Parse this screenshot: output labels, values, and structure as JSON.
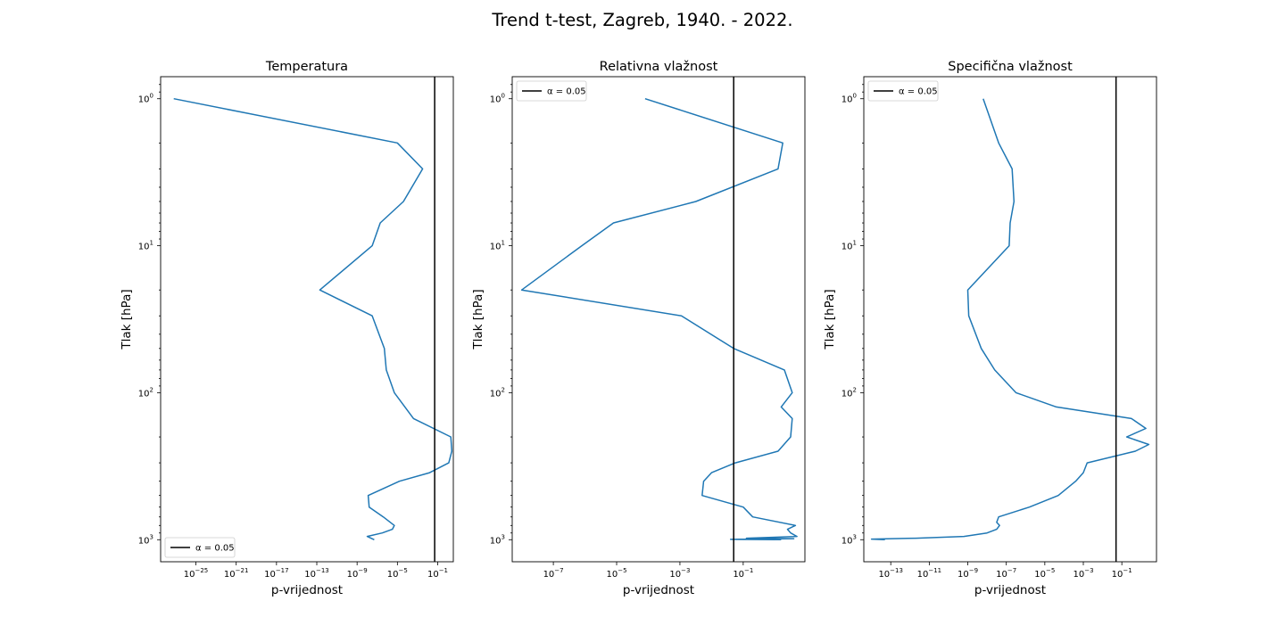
{
  "figure": {
    "title": "Trend t-test, Zagreb, 1940. - 2022."
  },
  "chart_data": [
    {
      "type": "line",
      "title": "Temperatura",
      "xlabel": "p-vrijednost",
      "ylabel": "Tlak [hPa]",
      "xscale": "log",
      "yscale": "log",
      "y_inverted": true,
      "xlim_exp": [
        -28.5,
        0.55
      ],
      "ylim_exp": [
        -0.15,
        3.15
      ],
      "x_tick_exponents": [
        -25,
        -21,
        -17,
        -13,
        -9,
        -5,
        -1
      ],
      "y_tick_exponents": [
        0,
        1,
        2,
        3
      ],
      "tick_base": "10",
      "alpha_line": {
        "value": 0.05,
        "label": "α = 0.05",
        "color": "#000000"
      },
      "legend": {
        "position": "lower-left",
        "entries": [
          "α = 0.05"
        ]
      },
      "series": [
        {
          "color": "#1f77b4",
          "points_exp": [
            [
              -27.2,
              0.0
            ],
            [
              -5.0,
              0.301
            ],
            [
              -2.5,
              0.477
            ],
            [
              -4.4,
              0.699
            ],
            [
              -6.7,
              0.845
            ],
            [
              -7.5,
              1.0
            ],
            [
              -12.7,
              1.301
            ],
            [
              -7.5,
              1.477
            ],
            [
              -6.3,
              1.699
            ],
            [
              -6.1,
              1.845
            ],
            [
              -5.3,
              2.0
            ],
            [
              -3.4,
              2.176
            ],
            [
              0.3,
              2.301
            ],
            [
              0.4,
              2.398
            ],
            [
              0.1,
              2.477
            ],
            [
              -1.8,
              2.544
            ],
            [
              -4.8,
              2.602
            ],
            [
              -7.9,
              2.699
            ],
            [
              -7.8,
              2.778
            ],
            [
              -6.4,
              2.845
            ],
            [
              -5.3,
              2.903
            ],
            [
              -5.5,
              2.929
            ],
            [
              -6.5,
              2.954
            ],
            [
              -8.0,
              2.978
            ],
            [
              -7.3,
              3.0
            ]
          ]
        }
      ]
    },
    {
      "type": "line",
      "title": "Relativna vlažnost",
      "xlabel": "p-vrijednost",
      "ylabel": "Tlak [hPa]",
      "xscale": "log",
      "yscale": "log",
      "y_inverted": true,
      "xlim_exp": [
        -8.3,
        0.95
      ],
      "ylim_exp": [
        -0.15,
        3.15
      ],
      "x_tick_exponents": [
        -7,
        -5,
        -3,
        -1
      ],
      "y_tick_exponents": [
        0,
        1,
        2,
        3
      ],
      "tick_base": "10",
      "alpha_line": {
        "value": 0.05,
        "label": "α = 0.05",
        "color": "#000000"
      },
      "legend": {
        "position": "upper-left",
        "entries": [
          "α = 0.05"
        ]
      },
      "series": [
        {
          "color": "#1f77b4",
          "points_exp": [
            [
              -4.1,
              0.0
            ],
            [
              0.25,
              0.301
            ],
            [
              0.1,
              0.477
            ],
            [
              -2.5,
              0.699
            ],
            [
              -5.1,
              0.845
            ],
            [
              -6.1,
              1.0
            ],
            [
              -8.0,
              1.301
            ],
            [
              -2.95,
              1.477
            ],
            [
              -1.3,
              1.699
            ],
            [
              0.3,
              1.845
            ],
            [
              0.55,
              2.0
            ],
            [
              0.2,
              2.097
            ],
            [
              0.55,
              2.176
            ],
            [
              0.5,
              2.301
            ],
            [
              0.1,
              2.398
            ],
            [
              -1.25,
              2.477
            ],
            [
              -2.0,
              2.544
            ],
            [
              -2.25,
              2.602
            ],
            [
              -2.3,
              2.699
            ],
            [
              -1.0,
              2.778
            ],
            [
              -0.7,
              2.845
            ],
            [
              0.65,
              2.903
            ],
            [
              0.4,
              2.929
            ],
            [
              0.5,
              2.954
            ],
            [
              0.7,
              2.978
            ],
            [
              -0.9,
              2.99
            ],
            [
              0.6,
              2.993
            ],
            [
              -1.4,
              2.998
            ],
            [
              0.2,
              3.0
            ]
          ]
        }
      ]
    },
    {
      "type": "line",
      "title": "Specifična vlažnost",
      "xlabel": "p-vrijednost",
      "ylabel": "Tlak [hPa]",
      "xscale": "log",
      "yscale": "log",
      "y_inverted": true,
      "xlim_exp": [
        -14.4,
        0.8
      ],
      "ylim_exp": [
        -0.15,
        3.15
      ],
      "x_tick_exponents": [
        -13,
        -11,
        -9,
        -7,
        -5,
        -3,
        -1
      ],
      "y_tick_exponents": [
        0,
        1,
        2,
        3
      ],
      "tick_base": "10",
      "alpha_line": {
        "value": 0.05,
        "label": "α = 0.05",
        "color": "#000000"
      },
      "legend": {
        "position": "upper-left",
        "entries": [
          "α = 0.05"
        ]
      },
      "series": [
        {
          "color": "#1f77b4",
          "points_exp": [
            [
              -8.2,
              0.0
            ],
            [
              -7.4,
              0.301
            ],
            [
              -6.7,
              0.477
            ],
            [
              -6.6,
              0.699
            ],
            [
              -6.8,
              0.845
            ],
            [
              -6.85,
              1.0
            ],
            [
              -9.0,
              1.301
            ],
            [
              -8.95,
              1.477
            ],
            [
              -8.3,
              1.699
            ],
            [
              -7.6,
              1.845
            ],
            [
              -6.5,
              2.0
            ],
            [
              -4.4,
              2.097
            ],
            [
              -0.5,
              2.176
            ],
            [
              0.25,
              2.243
            ],
            [
              -0.75,
              2.301
            ],
            [
              0.4,
              2.352
            ],
            [
              -0.3,
              2.398
            ],
            [
              -2.8,
              2.477
            ],
            [
              -3.0,
              2.544
            ],
            [
              -3.4,
              2.602
            ],
            [
              -4.3,
              2.699
            ],
            [
              -5.8,
              2.778
            ],
            [
              -7.4,
              2.845
            ],
            [
              -7.5,
              2.881
            ],
            [
              -7.35,
              2.903
            ],
            [
              -7.5,
              2.929
            ],
            [
              -8.0,
              2.954
            ],
            [
              -9.2,
              2.978
            ],
            [
              -11.7,
              2.99
            ],
            [
              -14.0,
              2.996
            ],
            [
              -13.3,
              3.0
            ]
          ]
        }
      ]
    }
  ]
}
